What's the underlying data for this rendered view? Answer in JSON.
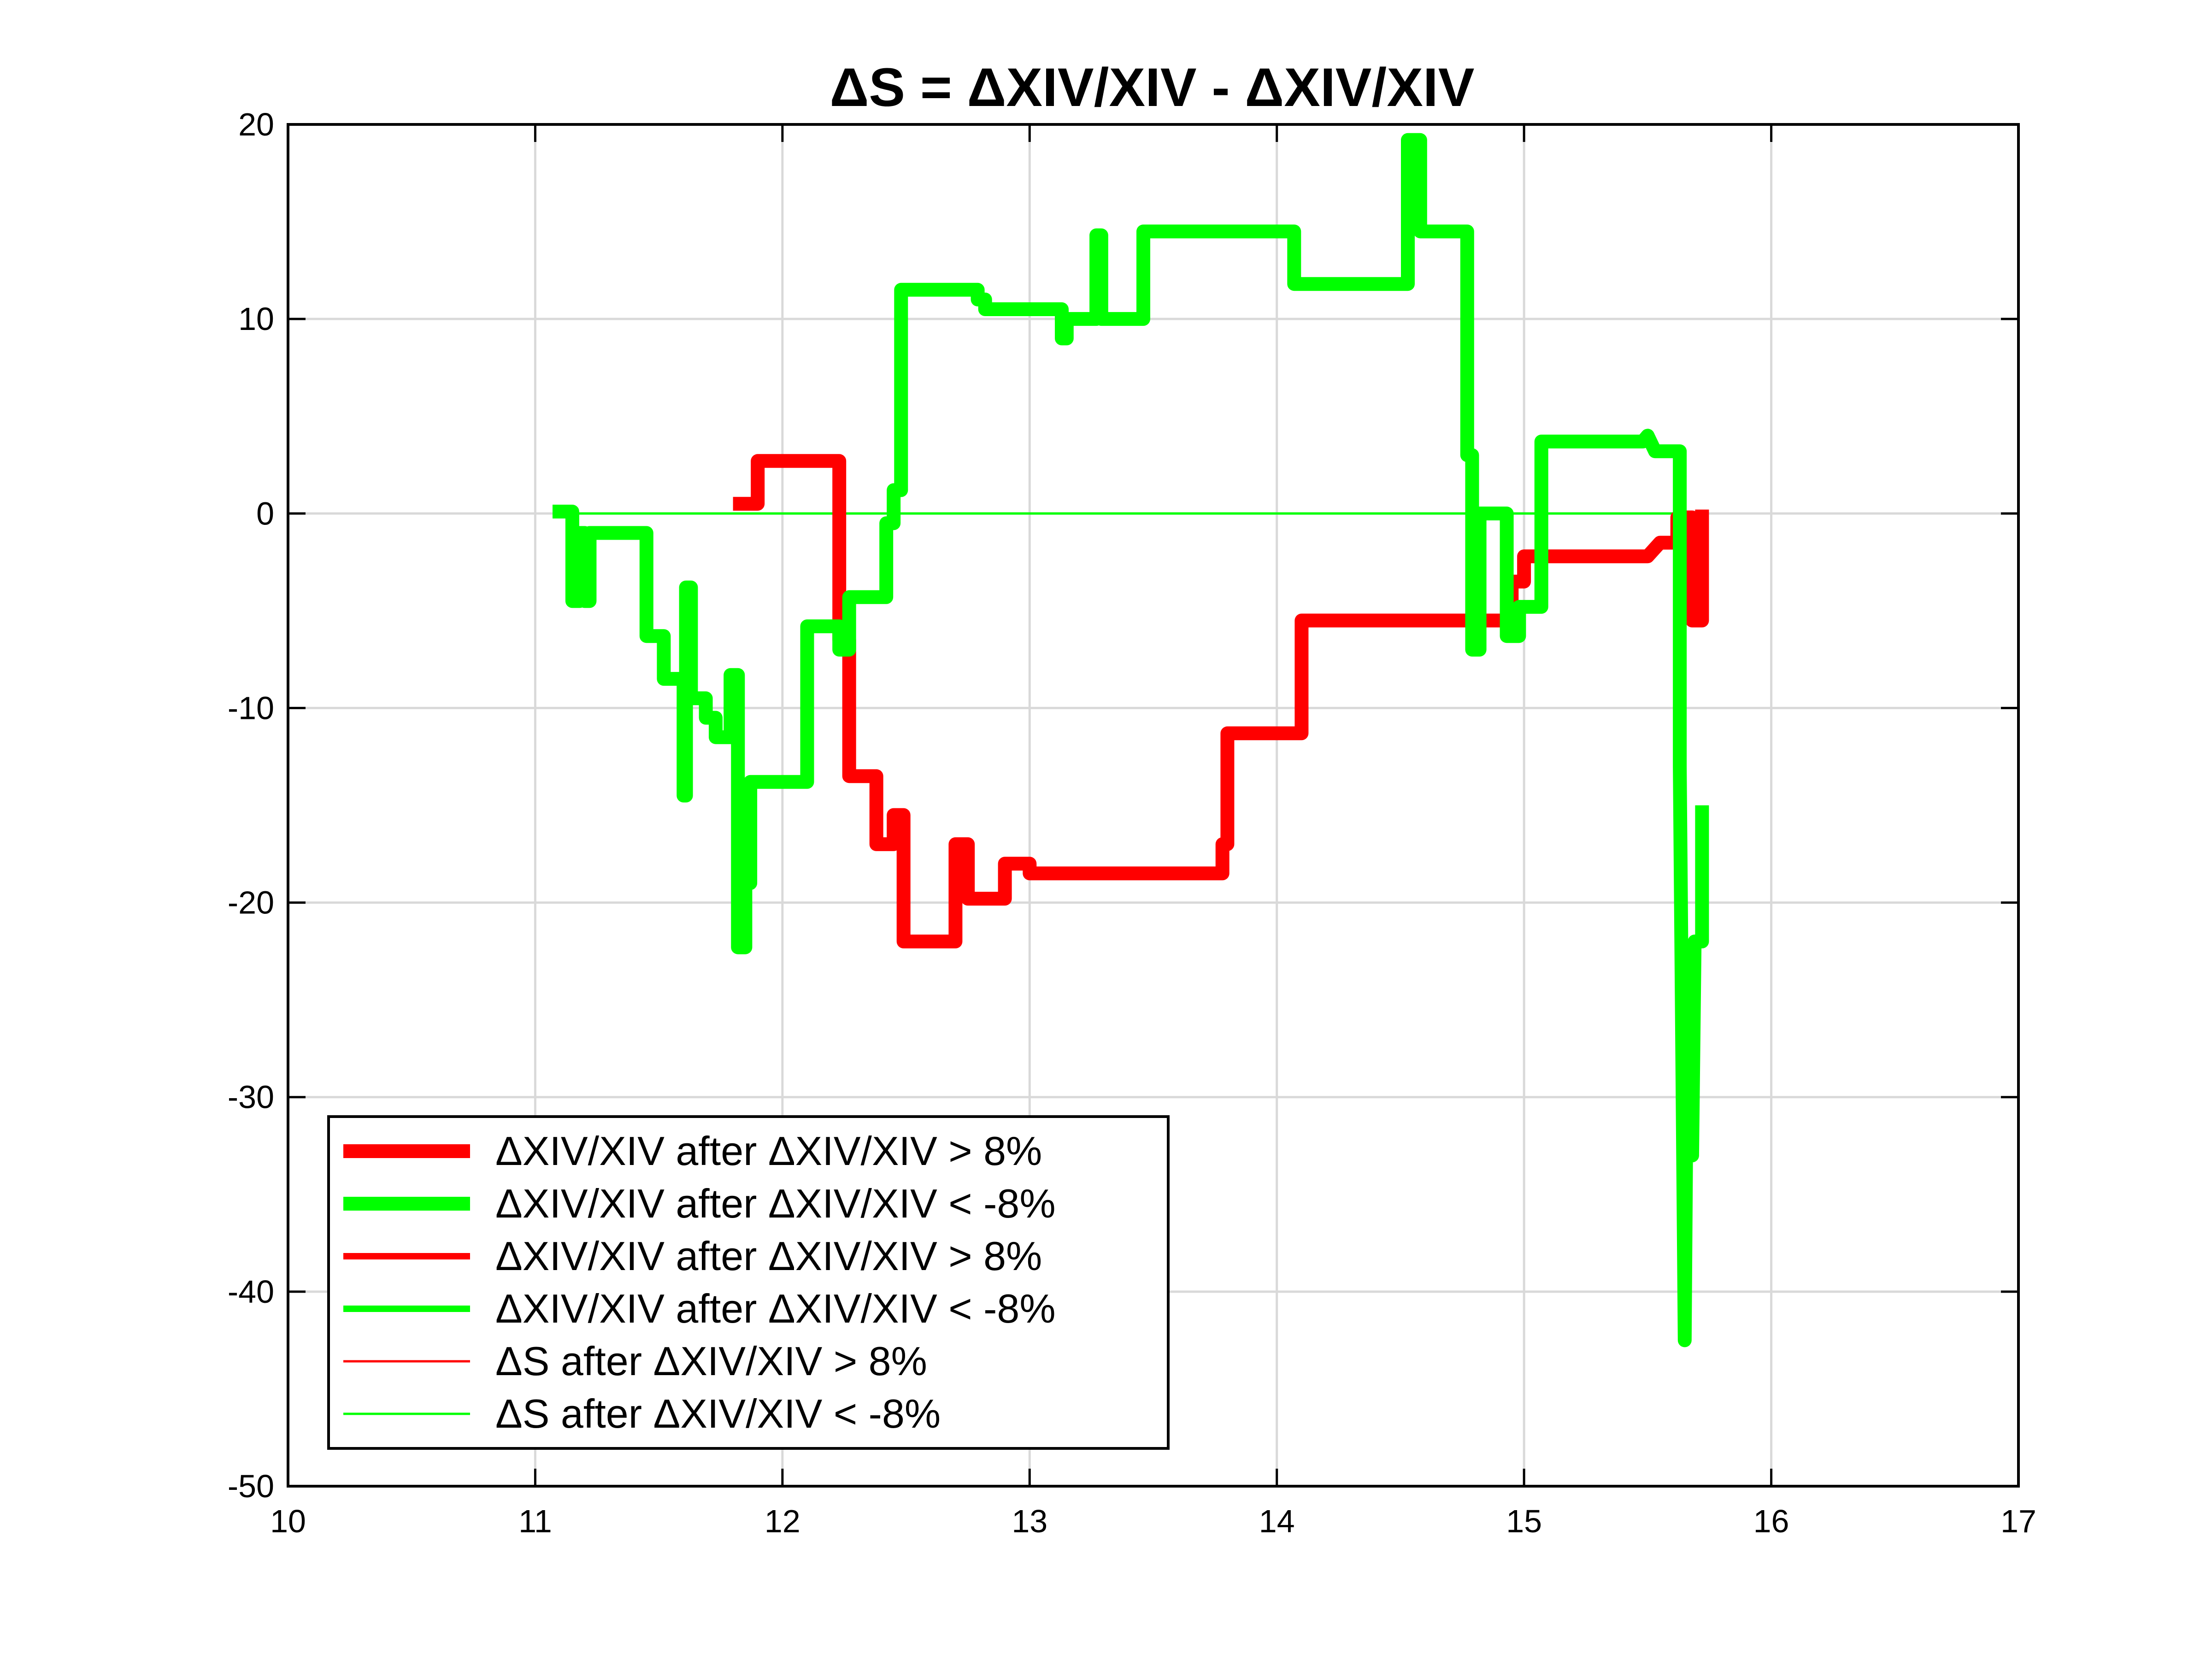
{
  "chart_data": {
    "type": "line",
    "title": "ΔS = ΔXIV/XIV - ΔXIV/XIV",
    "xlabel": "",
    "ylabel": "",
    "xlim": [
      10,
      17
    ],
    "ylim": [
      -50,
      20
    ],
    "xticks": [
      10,
      11,
      12,
      13,
      14,
      15,
      16,
      17
    ],
    "yticks": [
      -50,
      -40,
      -30,
      -20,
      -10,
      0,
      10,
      20
    ],
    "x_tick_labels": [
      "10",
      "11",
      "12",
      "13",
      "14",
      "15",
      "16",
      "17"
    ],
    "y_tick_labels": [
      "-50",
      "-40",
      "-30",
      "-20",
      "-10",
      "0",
      "10",
      "20"
    ],
    "grid": true,
    "legend_position": "lower-left",
    "series": [
      {
        "name": "ΔXIV/XIV after ΔXIV/XIV > 8%",
        "color": "#ff0000",
        "weight": "thick",
        "points": [
          [
            11.8,
            0.5
          ],
          [
            11.9,
            0.5
          ],
          [
            11.9,
            2.7
          ],
          [
            12.23,
            2.7
          ],
          [
            12.23,
            -6.5
          ],
          [
            12.27,
            -6.5
          ],
          [
            12.27,
            -13.5
          ],
          [
            12.38,
            -13.5
          ],
          [
            12.38,
            -17
          ],
          [
            12.45,
            -17
          ],
          [
            12.45,
            -15.5
          ],
          [
            12.49,
            -15.5
          ],
          [
            12.49,
            -22
          ],
          [
            12.7,
            -22
          ],
          [
            12.7,
            -17
          ],
          [
            12.75,
            -17
          ],
          [
            12.75,
            -19.8
          ],
          [
            12.9,
            -19.8
          ],
          [
            12.9,
            -18
          ],
          [
            13.0,
            -18
          ],
          [
            13.0,
            -18.5
          ],
          [
            13.78,
            -18.5
          ],
          [
            13.78,
            -17
          ],
          [
            13.8,
            -17
          ],
          [
            13.8,
            -11.3
          ],
          [
            14.1,
            -11.3
          ],
          [
            14.1,
            -5.5
          ],
          [
            14.95,
            -5.5
          ],
          [
            14.95,
            -3.5
          ],
          [
            15.0,
            -3.5
          ],
          [
            15.0,
            -2.2
          ],
          [
            15.5,
            -2.2
          ],
          [
            15.55,
            -1.5
          ],
          [
            15.62,
            -1.5
          ],
          [
            15.62,
            -0.2
          ],
          [
            15.68,
            -0.2
          ],
          [
            15.68,
            -5.5
          ],
          [
            15.72,
            -5.5
          ],
          [
            15.72,
            0.2
          ]
        ]
      },
      {
        "name": "ΔXIV/XIV after ΔXIV/XIV < -8%",
        "color": "#00ff00",
        "weight": "thick",
        "points": [
          [
            11.07,
            0.1
          ],
          [
            11.15,
            0.1
          ],
          [
            11.15,
            -4.5
          ],
          [
            11.18,
            -4.5
          ],
          [
            11.18,
            -1
          ],
          [
            11.2,
            -1
          ],
          [
            11.2,
            -4.5
          ],
          [
            11.22,
            -4.5
          ],
          [
            11.22,
            -1
          ],
          [
            11.45,
            -1
          ],
          [
            11.45,
            -6.3
          ],
          [
            11.52,
            -6.3
          ],
          [
            11.52,
            -8.5
          ],
          [
            11.6,
            -8.5
          ],
          [
            11.6,
            -14.5
          ],
          [
            11.61,
            -14.5
          ],
          [
            11.61,
            -3.8
          ],
          [
            11.63,
            -3.8
          ],
          [
            11.63,
            -9.5
          ],
          [
            11.69,
            -9.5
          ],
          [
            11.69,
            -10.5
          ],
          [
            11.73,
            -10.5
          ],
          [
            11.73,
            -11.5
          ],
          [
            11.79,
            -11.5
          ],
          [
            11.79,
            -8.3
          ],
          [
            11.82,
            -8.3
          ],
          [
            11.82,
            -22.3
          ],
          [
            11.85,
            -22.3
          ],
          [
            11.85,
            -19
          ],
          [
            11.87,
            -19
          ],
          [
            11.87,
            -13.8
          ],
          [
            12.1,
            -13.8
          ],
          [
            12.1,
            -5.8
          ],
          [
            12.23,
            -5.8
          ],
          [
            12.23,
            -7
          ],
          [
            12.27,
            -7
          ],
          [
            12.27,
            -4.3
          ],
          [
            12.42,
            -4.3
          ],
          [
            12.42,
            -0.5
          ],
          [
            12.45,
            -0.5
          ],
          [
            12.45,
            1.2
          ],
          [
            12.48,
            1.2
          ],
          [
            12.48,
            11.5
          ],
          [
            12.79,
            11.5
          ],
          [
            12.79,
            11
          ],
          [
            12.82,
            11
          ],
          [
            12.82,
            10.5
          ],
          [
            13.13,
            10.5
          ],
          [
            13.13,
            9
          ],
          [
            13.15,
            9
          ],
          [
            13.15,
            10
          ],
          [
            13.27,
            10
          ],
          [
            13.27,
            14.3
          ],
          [
            13.29,
            14.3
          ],
          [
            13.29,
            10
          ],
          [
            13.46,
            10
          ],
          [
            13.46,
            14.5
          ],
          [
            14.07,
            14.5
          ],
          [
            14.07,
            11.8
          ],
          [
            14.53,
            11.8
          ],
          [
            14.53,
            19.2
          ],
          [
            14.58,
            19.2
          ],
          [
            14.58,
            14.5
          ],
          [
            14.77,
            14.5
          ],
          [
            14.77,
            3
          ],
          [
            14.79,
            3
          ],
          [
            14.79,
            -7
          ],
          [
            14.82,
            -7
          ],
          [
            14.82,
            0
          ],
          [
            14.93,
            0
          ],
          [
            14.93,
            -6.3
          ],
          [
            14.98,
            -6.3
          ],
          [
            14.98,
            -4.8
          ],
          [
            15.07,
            -4.8
          ],
          [
            15.07,
            3.7
          ],
          [
            15.48,
            3.7
          ],
          [
            15.5,
            4
          ],
          [
            15.53,
            3.2
          ],
          [
            15.63,
            3.2
          ],
          [
            15.63,
            -13
          ],
          [
            15.65,
            -42.5
          ],
          [
            15.66,
            -25
          ],
          [
            15.68,
            -33
          ],
          [
            15.69,
            -22
          ],
          [
            15.72,
            -22
          ],
          [
            15.72,
            -15
          ]
        ]
      },
      {
        "name": "ΔXIV/XIV after ΔXIV/XIV > 8%",
        "color": "#ff0000",
        "weight": "medium",
        "points": []
      },
      {
        "name": "ΔXIV/XIV after ΔXIV/XIV < -8%",
        "color": "#00ff00",
        "weight": "medium",
        "points": []
      },
      {
        "name": "ΔS after ΔXIV/XIV > 8%",
        "color": "#ff0000",
        "weight": "thin",
        "points": []
      },
      {
        "name": "ΔS after ΔXIV/XIV < -8%",
        "color": "#00ff00",
        "weight": "thin",
        "points": [
          [
            11.07,
            0
          ],
          [
            15.72,
            0
          ]
        ]
      }
    ]
  }
}
